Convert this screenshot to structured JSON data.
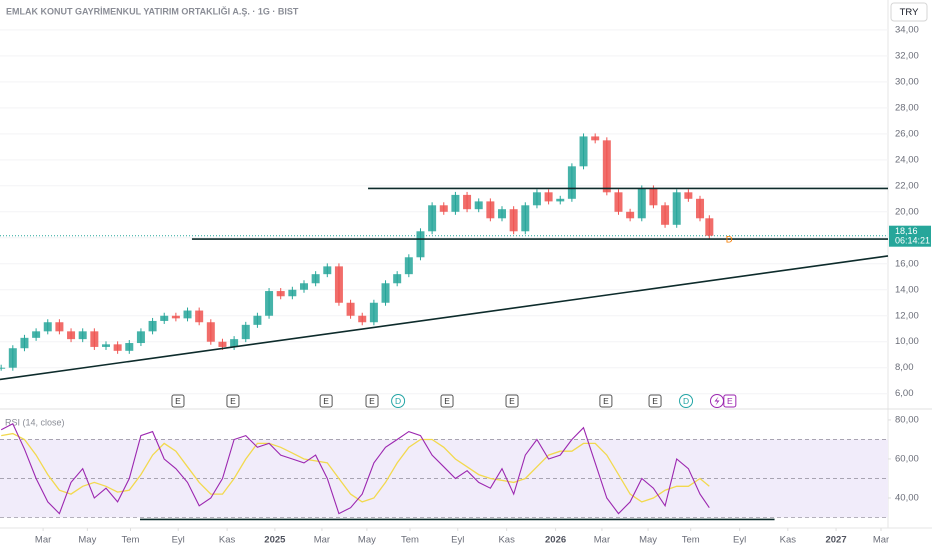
{
  "chart_data": [
    {
      "type": "candlestick",
      "title": "EMLAK KONUT GAYRİMENKUL YATIRIM ORTAKLIĞI A.Ş. · 1G · BIST",
      "currency": "TRY",
      "x": [
        -1.8,
        -1.3,
        -0.8,
        -0.3,
        0.2,
        0.7,
        1.2,
        1.7,
        2.2,
        2.7,
        3.2,
        3.7,
        4.2,
        4.7,
        5.2,
        5.7,
        6.2,
        6.7,
        7.2,
        7.7,
        8.2,
        8.7,
        9.2,
        9.7,
        10.2,
        10.7,
        11.2,
        11.7,
        12.2,
        12.7,
        13.2,
        13.7,
        14.2,
        14.7,
        15.2,
        15.7,
        16.2,
        16.7,
        17.2,
        17.7,
        18.2,
        18.7,
        19.2,
        19.7,
        20.2,
        20.7,
        21.2,
        21.7,
        22.2,
        22.7,
        23.2,
        23.7,
        24.2,
        24.7,
        25.2,
        25.7,
        26.2,
        26.7,
        27.2,
        27.7,
        28.2,
        28.6
      ],
      "close": [
        8.0,
        9.5,
        10.3,
        10.8,
        11.5,
        10.8,
        10.2,
        10.8,
        9.6,
        9.8,
        9.3,
        9.9,
        10.8,
        11.6,
        12.0,
        11.8,
        12.4,
        11.5,
        10.0,
        9.6,
        10.2,
        11.3,
        12.0,
        13.9,
        13.5,
        14.0,
        14.5,
        15.2,
        15.8,
        13.0,
        12.0,
        11.5,
        13.0,
        14.5,
        15.2,
        16.5,
        18.5,
        20.5,
        20.0,
        21.3,
        20.2,
        20.8,
        19.5,
        20.2,
        18.5,
        20.5,
        21.5,
        20.8,
        21.0,
        23.5,
        25.8,
        25.5,
        21.5,
        20.0,
        19.5,
        21.8,
        20.5,
        19.0,
        21.5,
        21.0,
        19.5,
        18.16
      ],
      "up_color": "#26a69a",
      "down_color": "#ef5350",
      "xlim": [
        -1.85,
        36.27
      ],
      "ylim": [
        4.9,
        36.3
      ],
      "yticks": [
        {
          "value": 6,
          "label": "6,00"
        },
        {
          "value": 8,
          "label": "8,00"
        },
        {
          "value": 10,
          "label": "10,00"
        },
        {
          "value": 12,
          "label": "12,00"
        },
        {
          "value": 14,
          "label": "14,00"
        },
        {
          "value": 16,
          "label": "16,00"
        },
        {
          "value": 18,
          "label": "18,00"
        },
        {
          "value": 20,
          "label": "20,00"
        },
        {
          "value": 22,
          "label": "22,00"
        },
        {
          "value": 24,
          "label": "24,00"
        },
        {
          "value": 26,
          "label": "26,00"
        },
        {
          "value": 28,
          "label": "28,00"
        },
        {
          "value": 30,
          "label": "30,00"
        },
        {
          "value": 32,
          "label": "32,00"
        },
        {
          "value": 34,
          "label": "34,00"
        }
      ],
      "grid": true,
      "last_price": {
        "value": 18.16,
        "label": "18,16"
      },
      "countdown": "06:14:21",
      "last_color": "#26a69a",
      "events": [
        {
          "x": 5.79,
          "label": "E"
        },
        {
          "x": 8.15,
          "label": "E"
        },
        {
          "x": 12.15,
          "label": "E"
        },
        {
          "x": 14.12,
          "label": "E"
        },
        {
          "x": 15.24,
          "label": "D"
        },
        {
          "x": 17.34,
          "label": "E"
        },
        {
          "x": 20.13,
          "label": "E"
        },
        {
          "x": 24.16,
          "label": "E"
        },
        {
          "x": 26.27,
          "label": "E"
        },
        {
          "x": 27.6,
          "label": "D"
        },
        {
          "x": 29.48,
          "label": "E"
        }
      ],
      "dividend_marker": {
        "x": 29.45,
        "y": 17.9,
        "label": "D"
      },
      "trend_lines": [
        {
          "x": [
            13.95,
            36.27
          ],
          "y": [
            21.8,
            21.8
          ]
        },
        {
          "x": [
            6.39,
            36.27
          ],
          "y": [
            17.9,
            17.9
          ]
        },
        {
          "x": [
            -1.85,
            36.27
          ],
          "y": [
            7.1,
            16.6
          ]
        }
      ],
      "line_color": "#0d2b2b"
    },
    {
      "type": "line",
      "title": "RSI (14, close)",
      "x": [
        -1.8,
        -1.3,
        -0.8,
        -0.3,
        0.2,
        0.7,
        1.2,
        1.7,
        2.2,
        2.7,
        3.2,
        3.7,
        4.2,
        4.7,
        5.2,
        5.7,
        6.2,
        6.7,
        7.2,
        7.7,
        8.2,
        8.7,
        9.2,
        9.7,
        10.2,
        10.7,
        11.2,
        11.7,
        12.2,
        12.7,
        13.2,
        13.7,
        14.2,
        14.7,
        15.2,
        15.7,
        16.2,
        16.7,
        17.2,
        17.7,
        18.2,
        18.7,
        19.2,
        19.7,
        20.2,
        20.7,
        21.2,
        21.7,
        22.2,
        22.7,
        23.2,
        23.7,
        24.2,
        24.7,
        25.2,
        25.7,
        26.2,
        26.7,
        27.2,
        27.7,
        28.2,
        28.6
      ],
      "series": [
        {
          "color": "#9c27b0",
          "values": [
            75,
            78,
            65,
            50,
            38,
            32,
            48,
            55,
            40,
            45,
            38,
            50,
            72,
            74,
            60,
            55,
            48,
            36,
            40,
            50,
            70,
            72,
            66,
            68,
            62,
            60,
            58,
            62,
            50,
            32,
            35,
            42,
            58,
            66,
            70,
            74,
            72,
            62,
            56,
            50,
            54,
            48,
            45,
            55,
            42,
            62,
            70,
            60,
            62,
            70,
            76,
            58,
            40,
            32,
            38,
            50,
            45,
            36,
            60,
            55,
            42,
            35
          ]
        },
        {
          "color": "#f2d94e",
          "values": [
            72,
            73,
            70,
            62,
            52,
            44,
            42,
            46,
            48,
            46,
            43,
            44,
            52,
            62,
            68,
            64,
            56,
            48,
            42,
            42,
            50,
            60,
            68,
            68,
            66,
            63,
            60,
            59,
            58,
            50,
            42,
            38,
            40,
            48,
            58,
            66,
            70,
            70,
            66,
            60,
            56,
            52,
            50,
            49,
            48,
            50,
            56,
            62,
            64,
            64,
            68,
            68,
            62,
            52,
            42,
            38,
            40,
            44,
            46,
            46,
            50,
            46
          ]
        }
      ],
      "xlim": [
        -1.85,
        36.27
      ],
      "ylim": [
        24.6,
        85.1
      ],
      "yticks": [
        {
          "value": 40,
          "label": "40,00"
        },
        {
          "value": 60,
          "label": "60,00"
        },
        {
          "value": 80,
          "label": "80,00"
        }
      ],
      "levels": [
        30,
        50,
        70
      ],
      "band_color": "#f1ecfa",
      "xticks": [
        {
          "value": 0,
          "label": "Mar"
        },
        {
          "value": 1.9,
          "label": "May"
        },
        {
          "value": 3.75,
          "label": "Tem"
        },
        {
          "value": 5.8,
          "label": "Eyl"
        },
        {
          "value": 7.9,
          "label": "Kas"
        },
        {
          "value": 9.95,
          "label": "2025"
        },
        {
          "value": 11.97,
          "label": "Mar"
        },
        {
          "value": 13.9,
          "label": "May"
        },
        {
          "value": 15.75,
          "label": "Tem"
        },
        {
          "value": 17.8,
          "label": "Eyl"
        },
        {
          "value": 19.9,
          "label": "Kas"
        },
        {
          "value": 22.0,
          "label": "2026"
        },
        {
          "value": 23.99,
          "label": "Mar"
        },
        {
          "value": 25.97,
          "label": "May"
        },
        {
          "value": 27.8,
          "label": "Tem"
        },
        {
          "value": 29.9,
          "label": "Eyl"
        },
        {
          "value": 31.97,
          "label": "Kas"
        },
        {
          "value": 34.04,
          "label": "2027"
        },
        {
          "value": 35.97,
          "label": "Mar"
        }
      ],
      "trend_lines": [
        {
          "x": [
            4.16,
            31.4
          ],
          "y": [
            29,
            29
          ]
        }
      ],
      "line_color": "#0d2b2b"
    }
  ]
}
